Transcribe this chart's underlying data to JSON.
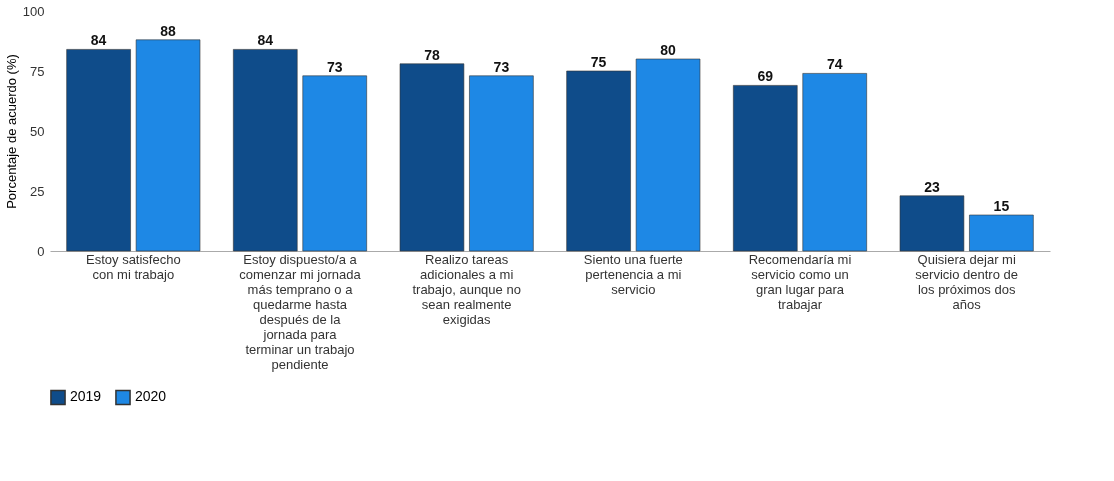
{
  "chart_data": {
    "type": "bar",
    "ylabel": "Porcentaje de acuerdo (%)",
    "categories": [
      "Estoy satisfecho con mi trabajo",
      "Estoy dispuesto/a a comenzar mi jornada más temprano o a quedarme hasta después de la jornada para terminar un trabajo pendiente",
      "Realizo tareas adicionales a mi trabajo, aunque no sean realmente exigidas",
      "Siento una fuerte pertenencia a mi servicio",
      "Recomendaría mi servicio como un gran lugar para trabajar",
      "Quisiera dejar mi servicio dentro de los próximos dos años"
    ],
    "series": [
      {
        "name": "2019",
        "color": "#0f4c8a",
        "values": [
          84,
          84,
          78,
          75,
          69,
          23
        ]
      },
      {
        "name": "2020",
        "color": "#1e88e5",
        "values": [
          88,
          73,
          73,
          80,
          74,
          15
        ]
      }
    ],
    "ylim": [
      0,
      100
    ],
    "yticks": [
      0,
      25,
      50,
      75,
      100
    ],
    "data_labels": true,
    "grid": false,
    "legend": "bottom"
  }
}
